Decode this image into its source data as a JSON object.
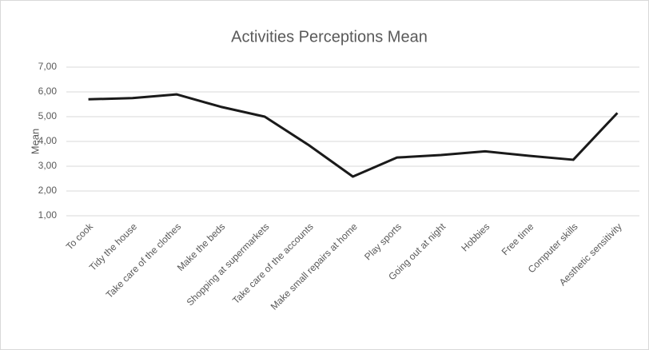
{
  "chart_data": {
    "type": "line",
    "title": "Activities Perceptions Mean",
    "y_label": "Mean",
    "categories": [
      "To cook",
      "Tidy the house",
      "Take care of the clothes",
      "Make the beds",
      "Shopping at supermarkets",
      "Take care of the accounts",
      "Make small repairs at home",
      "Play sports",
      "Going out at night",
      "Hobbies",
      "Free time",
      "Computer skills",
      "Aesthetic sensitivity"
    ],
    "series": [
      {
        "name": "Mean",
        "color": "#1a1a1a",
        "values": [
          5.7,
          5.75,
          5.9,
          5.4,
          5.0,
          3.85,
          2.58,
          3.35,
          3.45,
          3.6,
          3.42,
          3.26,
          5.15
        ]
      }
    ],
    "ylim": [
      1,
      7
    ],
    "yticks": [
      {
        "value": 1,
        "label": "1,00"
      },
      {
        "value": 2,
        "label": "2,00"
      },
      {
        "value": 3,
        "label": "3,00"
      },
      {
        "value": 4,
        "label": "4,00"
      },
      {
        "value": 5,
        "label": "5,00"
      },
      {
        "value": 6,
        "label": "6,00"
      },
      {
        "value": 7,
        "label": "7,00"
      }
    ],
    "grid": true
  }
}
